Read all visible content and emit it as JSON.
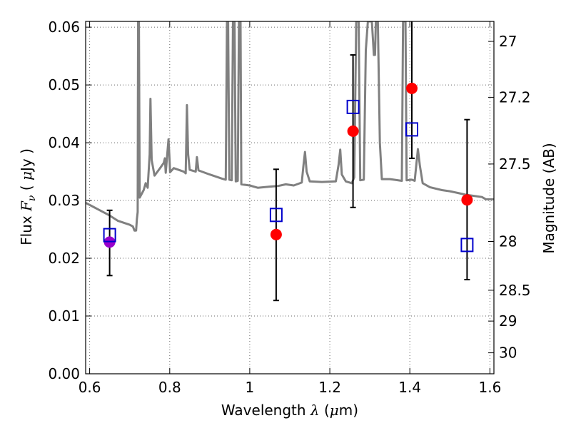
{
  "chart_data": {
    "type": "scatter",
    "title": "",
    "xlabel": {
      "prefix": "Wavelength ",
      "symbol": "λ",
      "units_open": " (",
      "units_mu": "μ",
      "units_rest": "m)"
    },
    "ylabel": {
      "prefix": "Flux ",
      "symbol": "F",
      "subscript": "ν",
      "units_open": " ( ",
      "units_mu": "μ",
      "units_rest": "Jy )"
    },
    "y2label": "Magnitude (AB)",
    "xlim": [
      0.59,
      1.61
    ],
    "ylim": [
      0.0,
      0.061
    ],
    "grid": true,
    "x_ticks": [
      {
        "value": 0.6,
        "label": "0.6"
      },
      {
        "value": 0.8,
        "label": "0.8"
      },
      {
        "value": 1.0,
        "label": "1"
      },
      {
        "value": 1.2,
        "label": "1.2"
      },
      {
        "value": 1.4,
        "label": "1.4"
      },
      {
        "value": 1.6,
        "label": "1.6"
      }
    ],
    "y_ticks": [
      {
        "value": 0.0,
        "label": "0.00"
      },
      {
        "value": 0.01,
        "label": "0.01"
      },
      {
        "value": 0.02,
        "label": "0.02"
      },
      {
        "value": 0.03,
        "label": "0.03"
      },
      {
        "value": 0.04,
        "label": "0.04"
      },
      {
        "value": 0.05,
        "label": "0.05"
      },
      {
        "value": 0.06,
        "label": "0.06"
      }
    ],
    "y2_ticks": [
      {
        "mag": 27.0,
        "label": "27"
      },
      {
        "mag": 27.2,
        "label": "27.2"
      },
      {
        "mag": 27.5,
        "label": "27.5"
      },
      {
        "mag": 28.0,
        "label": "28"
      },
      {
        "mag": 28.5,
        "label": "28.5"
      },
      {
        "mag": 29.0,
        "label": "29"
      },
      {
        "mag": 30.0,
        "label": "30"
      }
    ],
    "colors": {
      "spectrum": "#808080",
      "observed": "#ff0000",
      "model": "#0000cc",
      "first_point": "#9900cc",
      "errorbar": "#000000",
      "grid": "#666666"
    },
    "spectrum": [
      [
        0.59,
        0.0296
      ],
      [
        0.62,
        0.0285
      ],
      [
        0.65,
        0.0274
      ],
      [
        0.67,
        0.0265
      ],
      [
        0.7,
        0.0258
      ],
      [
        0.708,
        0.0255
      ],
      [
        0.712,
        0.0248
      ],
      [
        0.716,
        0.0248
      ],
      [
        0.718,
        0.0268
      ],
      [
        0.72,
        0.028
      ],
      [
        0.721,
        0.061
      ],
      [
        0.723,
        0.061
      ],
      [
        0.725,
        0.0305
      ],
      [
        0.735,
        0.0318
      ],
      [
        0.74,
        0.033
      ],
      [
        0.745,
        0.0322
      ],
      [
        0.75,
        0.038
      ],
      [
        0.752,
        0.0476
      ],
      [
        0.755,
        0.037
      ],
      [
        0.762,
        0.0343
      ],
      [
        0.775,
        0.0355
      ],
      [
        0.785,
        0.0365
      ],
      [
        0.788,
        0.0373
      ],
      [
        0.79,
        0.0348
      ],
      [
        0.795,
        0.039
      ],
      [
        0.797,
        0.0406
      ],
      [
        0.799,
        0.038
      ],
      [
        0.801,
        0.0349
      ],
      [
        0.81,
        0.0356
      ],
      [
        0.835,
        0.035
      ],
      [
        0.84,
        0.0347
      ],
      [
        0.843,
        0.0465
      ],
      [
        0.846,
        0.038
      ],
      [
        0.85,
        0.0353
      ],
      [
        0.865,
        0.035
      ],
      [
        0.868,
        0.0375
      ],
      [
        0.872,
        0.0352
      ],
      [
        0.9,
        0.0345
      ],
      [
        0.93,
        0.0338
      ],
      [
        0.94,
        0.0336
      ],
      [
        0.943,
        0.061
      ],
      [
        0.946,
        0.061
      ],
      [
        0.949,
        0.0336
      ],
      [
        0.955,
        0.0335
      ],
      [
        0.958,
        0.061
      ],
      [
        0.962,
        0.061
      ],
      [
        0.965,
        0.0333
      ],
      [
        0.97,
        0.0334
      ],
      [
        0.973,
        0.061
      ],
      [
        0.977,
        0.061
      ],
      [
        0.979,
        0.0328
      ],
      [
        1.0,
        0.0326
      ],
      [
        1.02,
        0.0322
      ],
      [
        1.05,
        0.0324
      ],
      [
        1.07,
        0.0325
      ],
      [
        1.09,
        0.0328
      ],
      [
        1.11,
        0.0326
      ],
      [
        1.13,
        0.0331
      ],
      [
        1.134,
        0.036
      ],
      [
        1.138,
        0.0384
      ],
      [
        1.142,
        0.035
      ],
      [
        1.15,
        0.0333
      ],
      [
        1.18,
        0.0332
      ],
      [
        1.215,
        0.0333
      ],
      [
        1.222,
        0.0362
      ],
      [
        1.226,
        0.0388
      ],
      [
        1.23,
        0.0345
      ],
      [
        1.24,
        0.0333
      ],
      [
        1.255,
        0.033
      ],
      [
        1.261,
        0.034
      ],
      [
        1.266,
        0.061
      ],
      [
        1.272,
        0.061
      ],
      [
        1.276,
        0.0335
      ],
      [
        1.285,
        0.0336
      ],
      [
        1.29,
        0.056
      ],
      [
        1.295,
        0.061
      ],
      [
        1.3,
        0.061
      ],
      [
        1.305,
        0.061
      ],
      [
        1.31,
        0.0552
      ],
      [
        1.313,
        0.0552
      ],
      [
        1.315,
        0.061
      ],
      [
        1.32,
        0.061
      ],
      [
        1.325,
        0.04
      ],
      [
        1.33,
        0.0337
      ],
      [
        1.35,
        0.0337
      ],
      [
        1.36,
        0.0336
      ],
      [
        1.38,
        0.0334
      ],
      [
        1.383,
        0.061
      ],
      [
        1.389,
        0.061
      ],
      [
        1.392,
        0.0335
      ],
      [
        1.405,
        0.0336
      ],
      [
        1.412,
        0.0334
      ],
      [
        1.42,
        0.0389
      ],
      [
        1.425,
        0.036
      ],
      [
        1.432,
        0.033
      ],
      [
        1.45,
        0.0323
      ],
      [
        1.48,
        0.0318
      ],
      [
        1.5,
        0.0316
      ],
      [
        1.52,
        0.0313
      ],
      [
        1.54,
        0.031
      ],
      [
        1.56,
        0.0308
      ],
      [
        1.58,
        0.0306
      ],
      [
        1.59,
        0.0302
      ],
      [
        1.61,
        0.0302
      ]
    ],
    "observed": [
      {
        "x": 0.65,
        "y": 0.0228,
        "yerr_low": 0.017,
        "yerr_high": 0.0283
      },
      {
        "x": 1.066,
        "y": 0.0241,
        "yerr_low": 0.0127,
        "yerr_high": 0.0354
      },
      {
        "x": 1.258,
        "y": 0.042,
        "yerr_low": 0.0288,
        "yerr_high": 0.0552
      },
      {
        "x": 1.405,
        "y": 0.0494,
        "yerr_low": 0.0373,
        "yerr_high": 0.061
      },
      {
        "x": 1.543,
        "y": 0.0301,
        "yerr_low": 0.0163,
        "yerr_high": 0.044
      }
    ],
    "model": [
      {
        "x": 0.65,
        "y": 0.024
      },
      {
        "x": 1.066,
        "y": 0.0275
      },
      {
        "x": 1.258,
        "y": 0.0462
      },
      {
        "x": 1.405,
        "y": 0.0423
      },
      {
        "x": 1.543,
        "y": 0.0223
      }
    ]
  }
}
